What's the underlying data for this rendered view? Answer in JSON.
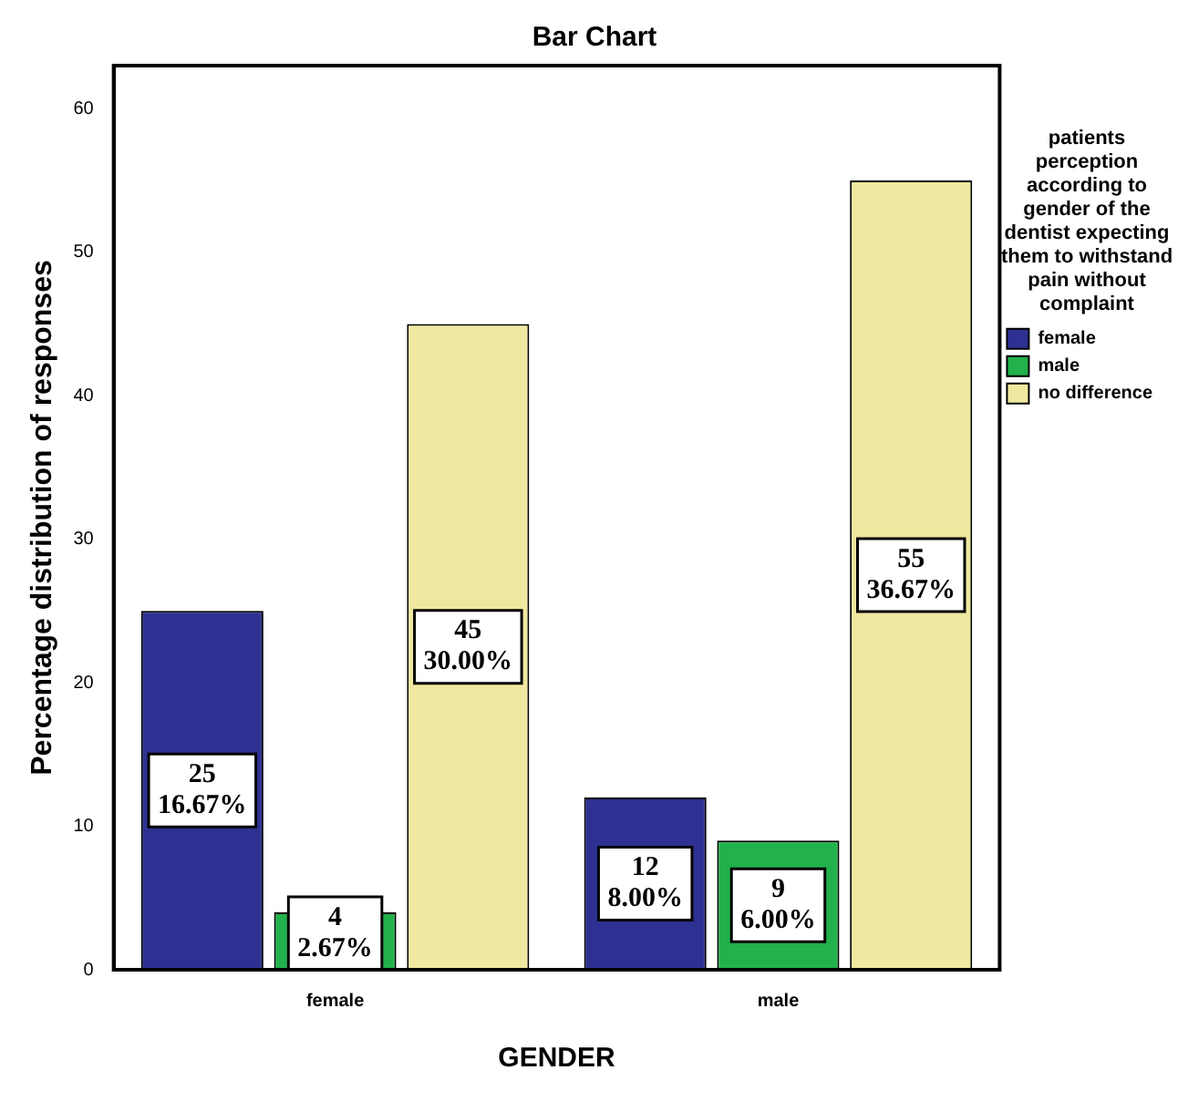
{
  "chart_data": {
    "type": "bar",
    "title": "Bar Chart",
    "xlabel": "GENDER",
    "ylabel": "Percentage distribution of responses",
    "legend_title": "patients perception according to gender of the dentist expecting them to withstand pain without complaint",
    "categories": [
      "female",
      "male"
    ],
    "series": [
      {
        "name": "female",
        "color": "#2e3192",
        "values": [
          25,
          12
        ],
        "value_labels": [
          "25\n16.67%",
          "12\n8.00%"
        ]
      },
      {
        "name": "male",
        "color": "#22b14c",
        "values": [
          4,
          9
        ],
        "value_labels": [
          "4\n2.67%",
          "9\n6.00%"
        ]
      },
      {
        "name": "no difference",
        "color": "#efe8a0",
        "values": [
          45,
          55
        ],
        "value_labels": [
          "45\n30.00%",
          "55\n36.67%"
        ]
      }
    ],
    "ylim": [
      0,
      63
    ],
    "yticks": [
      0,
      10,
      20,
      30,
      40,
      50,
      60
    ],
    "grid": false,
    "legend": "right"
  }
}
